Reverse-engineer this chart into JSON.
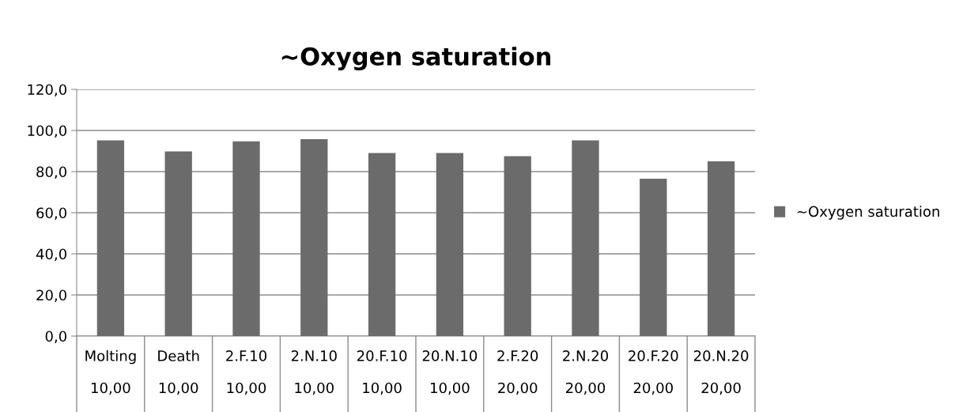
{
  "chart_data": {
    "type": "bar",
    "title": "~Oxygen saturation",
    "categories": [
      "Molting\n10,00",
      "Death\n10,00",
      "2.F.10\n10,00",
      "2.N.10\n10,00",
      "20.F.10\n10,00",
      "20.N.10\n10,00",
      "2.F.20\n20,00",
      "2.N.20\n20,00",
      "20.F.20\n20,00",
      "20.N.20\n20,00"
    ],
    "series": [
      {
        "name": "~Oxygen saturation",
        "color": "#6b6b6b",
        "values": [
          95.2,
          89.8,
          94.7,
          95.8,
          89.0,
          89.0,
          87.5,
          95.2,
          76.5,
          85.0
        ]
      }
    ],
    "ylim": [
      0,
      120
    ],
    "yticks": [
      {
        "value": 0,
        "label": "0,0"
      },
      {
        "value": 20,
        "label": "20,0"
      },
      {
        "value": 40,
        "label": "40,0"
      },
      {
        "value": 60,
        "label": "60,0"
      },
      {
        "value": 80,
        "label": "80,0"
      },
      {
        "value": 100,
        "label": "100,0"
      },
      {
        "value": 120,
        "label": "120,0"
      }
    ],
    "grid": "y",
    "legend": "right"
  }
}
